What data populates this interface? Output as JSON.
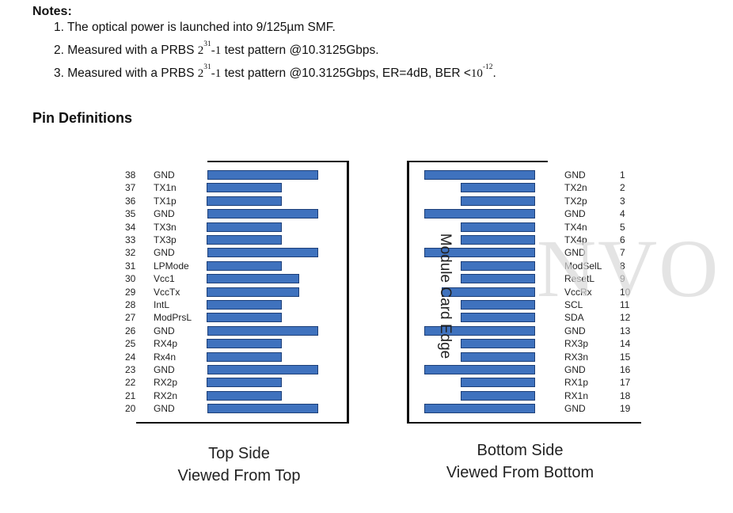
{
  "notes": {
    "title": "Notes:",
    "n1": "1. The optical power is launched into 9/125µm SMF.",
    "n2_a": "2. Measured with a PRBS ",
    "n2_base": "2",
    "n2_exp": "31",
    "n2_b": "-1",
    "n2_c": " test pattern @10.3125Gbps.",
    "n3_a": "3. Measured with a PRBS ",
    "n3_base": "2",
    "n3_exp": "31",
    "n3_b": "-1",
    "n3_c": " test pattern @10.3125Gbps, ER=4dB, BER <",
    "n3_base2": "10",
    "n3_exp2": "-12",
    "n3_d": "."
  },
  "section_title": "Pin Definitions",
  "top_pins": [
    {
      "num": "38",
      "name": "GND",
      "len": "long"
    },
    {
      "num": "37",
      "name": "TX1n",
      "len": "short"
    },
    {
      "num": "36",
      "name": "TX1p",
      "len": "short"
    },
    {
      "num": "35",
      "name": "GND",
      "len": "long"
    },
    {
      "num": "34",
      "name": "TX3n",
      "len": "short"
    },
    {
      "num": "33",
      "name": "TX3p",
      "len": "short"
    },
    {
      "num": "32",
      "name": "GND",
      "len": "long"
    },
    {
      "num": "31",
      "name": "LPMode",
      "len": "short"
    },
    {
      "num": "30",
      "name": "Vcc1",
      "len": "mid"
    },
    {
      "num": "29",
      "name": "VccTx",
      "len": "mid"
    },
    {
      "num": "28",
      "name": "IntL",
      "len": "short"
    },
    {
      "num": "27",
      "name": "ModPrsL",
      "len": "short"
    },
    {
      "num": "26",
      "name": "GND",
      "len": "long"
    },
    {
      "num": "25",
      "name": "RX4p",
      "len": "short"
    },
    {
      "num": "24",
      "name": "Rx4n",
      "len": "short"
    },
    {
      "num": "23",
      "name": "GND",
      "len": "long"
    },
    {
      "num": "22",
      "name": "RX2p",
      "len": "short"
    },
    {
      "num": "21",
      "name": "RX2n",
      "len": "short"
    },
    {
      "num": "20",
      "name": "GND",
      "len": "long"
    }
  ],
  "bottom_pins": [
    {
      "num": "1",
      "name": "GND",
      "len": "long"
    },
    {
      "num": "2",
      "name": "TX2n",
      "len": "short"
    },
    {
      "num": "3",
      "name": "TX2p",
      "len": "short"
    },
    {
      "num": "4",
      "name": "GND",
      "len": "long"
    },
    {
      "num": "5",
      "name": "TX4n",
      "len": "short"
    },
    {
      "num": "6",
      "name": "TX4p",
      "len": "short"
    },
    {
      "num": "7",
      "name": "GND",
      "len": "long"
    },
    {
      "num": "8",
      "name": "ModSelL",
      "len": "short"
    },
    {
      "num": "9",
      "name": "ResetL",
      "len": "short"
    },
    {
      "num": "10",
      "name": "VccRx",
      "len": "mid"
    },
    {
      "num": "11",
      "name": "SCL",
      "len": "short"
    },
    {
      "num": "12",
      "name": "SDA",
      "len": "short"
    },
    {
      "num": "13",
      "name": "GND",
      "len": "long"
    },
    {
      "num": "14",
      "name": "RX3p",
      "len": "short"
    },
    {
      "num": "15",
      "name": "RX3n",
      "len": "short"
    },
    {
      "num": "16",
      "name": "GND",
      "len": "long"
    },
    {
      "num": "17",
      "name": "RX1p",
      "len": "short"
    },
    {
      "num": "18",
      "name": "RX1n",
      "len": "short"
    },
    {
      "num": "19",
      "name": "GND",
      "len": "long"
    }
  ],
  "edge_label": "Module Card Edge",
  "top_caption": {
    "line1": "Top Side",
    "line2": "Viewed From Top"
  },
  "bottom_caption": {
    "line1": "Bottom Side",
    "line2": "Viewed From Bottom"
  },
  "watermark": "NVO",
  "colors": {
    "pad": "#3f72be",
    "pad_border": "#1d3f78"
  }
}
